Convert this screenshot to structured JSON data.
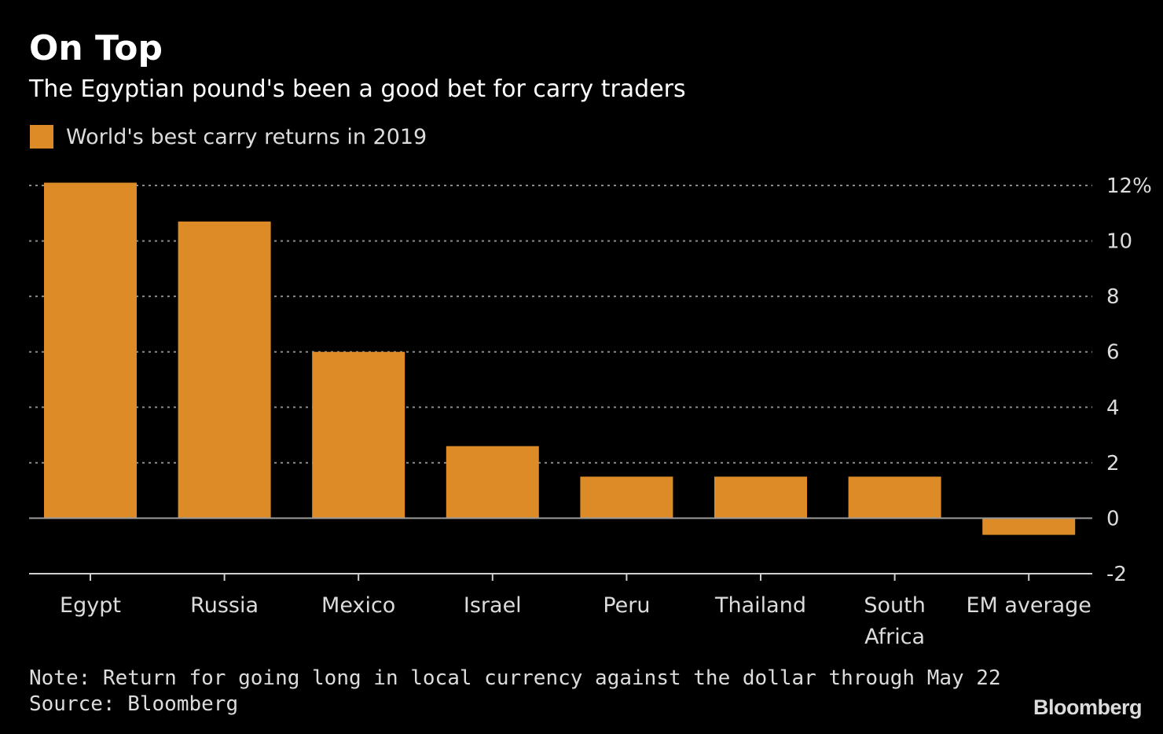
{
  "title": "On Top",
  "subtitle": "The Egyptian pound's been a good bet for carry traders",
  "legend": {
    "label": "World's best carry returns in 2019"
  },
  "colors": {
    "bar": "#dd8b27",
    "background": "#000000",
    "grid": "#8a8a8a",
    "text": "#dcdcdc"
  },
  "chart_data": {
    "type": "bar",
    "title": "On Top",
    "subtitle": "The Egyptian pound's been a good bet for carry traders",
    "xlabel": "",
    "ylabel": "",
    "categories": [
      "Egypt",
      "Russia",
      "Mexico",
      "Israel",
      "Peru",
      "Thailand",
      "South Africa",
      "EM average"
    ],
    "category_lines": [
      [
        "Egypt"
      ],
      [
        "Russia"
      ],
      [
        "Mexico"
      ],
      [
        "Israel"
      ],
      [
        "Peru"
      ],
      [
        "Thailand"
      ],
      [
        "South",
        "Africa"
      ],
      [
        "EM average"
      ]
    ],
    "series": [
      {
        "name": "World's best carry returns in 2019",
        "values": [
          12.1,
          10.7,
          6.0,
          2.6,
          1.5,
          1.5,
          1.5,
          -0.6
        ]
      }
    ],
    "ylim": [
      -2,
      12
    ],
    "yticks": [
      12,
      10,
      8,
      6,
      4,
      2,
      0,
      -2
    ],
    "ytick_labels": [
      "12%",
      "10",
      "8",
      "6",
      "4",
      "2",
      "0",
      "-2"
    ],
    "grid": true,
    "legend_position": "top-left"
  },
  "footer": {
    "note": "Note: Return for going long in local currency against the dollar through May 22",
    "source": "Source: Bloomberg",
    "brand": "Bloomberg"
  }
}
